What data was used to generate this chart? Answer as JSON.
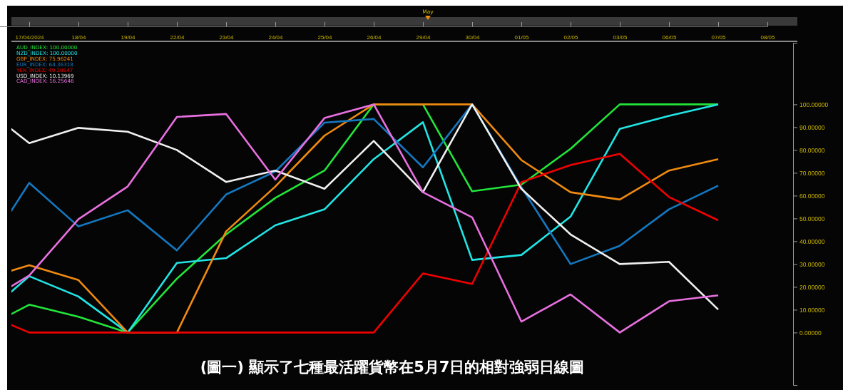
{
  "chart_data": {
    "type": "line",
    "title": "(圖一) 顯示了七種最活躍貨幣在5月7日的相對強弱日線圖",
    "categories": [
      null,
      "17/04/2024",
      "18/04",
      "19/04",
      "22/04",
      "23/04",
      "24/04",
      "25/04",
      "26/04",
      "29/04",
      "30/04",
      "01/05",
      "02/05",
      "03/05",
      "06/05",
      "07/05",
      "08/05"
    ],
    "series": [
      {
        "name": "AUD_INDEX: 100.00000",
        "color": "#22e53a",
        "values": [
          1,
          12.2,
          6.9,
          0,
          23.6,
          43,
          59,
          71,
          100,
          100,
          61.9,
          64.8,
          80.5,
          100,
          100,
          100,
          null
        ]
      },
      {
        "name": "NZD_INDEX: 100.00000",
        "color": "#22e5e5",
        "values": [
          6,
          24.7,
          15.8,
          0,
          30.5,
          32.6,
          47,
          54,
          76,
          92.2,
          31.8,
          34,
          50.8,
          89.3,
          95,
          100,
          null
        ]
      },
      {
        "name": "GBP_INDEX: 75.96241",
        "color": "#f08a10",
        "values": [
          23,
          29.5,
          23,
          0,
          0,
          44.3,
          64,
          86.3,
          100,
          100,
          100,
          75.6,
          61.5,
          58.3,
          71,
          76,
          null
        ]
      },
      {
        "name": "EUR_INDEX: 64.36318",
        "color": "#1478c0",
        "values": [
          32,
          65.6,
          46.5,
          53.6,
          36,
          60.5,
          70.6,
          92,
          93.6,
          72.4,
          100,
          63.7,
          30,
          38,
          54,
          64.4,
          null
        ]
      },
      {
        "name": "YEN_INDEX: 49.20647",
        "color": "#f00000",
        "values": [
          9,
          0,
          0,
          0,
          0,
          0,
          0,
          0,
          0,
          25.9,
          21.3,
          65.9,
          73.4,
          78.3,
          59.4,
          49.2,
          null
        ]
      },
      {
        "name": "USD_INDEX: 10.13969",
        "color": "#f0f0f0",
        "values": [
          100,
          83,
          89.7,
          88,
          80,
          66,
          71,
          63,
          84,
          61.5,
          100,
          63,
          43,
          30,
          31,
          10.1,
          null
        ]
      },
      {
        "name": "CAD_INDEX: 16.25646",
        "color": "#e870e0",
        "values": [
          12,
          25,
          49.7,
          64,
          94.5,
          95.8,
          67,
          94,
          100,
          61.5,
          50.5,
          4.8,
          16.7,
          0,
          13.7,
          16.3,
          null
        ]
      }
    ],
    "ylim": [
      -23,
      127
    ],
    "yticks": [
      {
        "value": 0,
        "label": "0.00000"
      },
      {
        "value": 10,
        "label": "10.00000"
      },
      {
        "value": 20,
        "label": "20.00000"
      },
      {
        "value": 30,
        "label": "30.00000"
      },
      {
        "value": 40,
        "label": "40.00000"
      },
      {
        "value": 50,
        "label": "50.00000"
      },
      {
        "value": 60,
        "label": "60.00000"
      },
      {
        "value": 70,
        "label": "70.00000"
      },
      {
        "value": 80,
        "label": "80.00000"
      },
      {
        "value": 90,
        "label": "90.00000"
      },
      {
        "value": 100,
        "label": "100.00000"
      }
    ],
    "annotations": [
      "May"
    ],
    "legend": "top left",
    "grid": false,
    "marker": "none",
    "line_style": "solid"
  }
}
